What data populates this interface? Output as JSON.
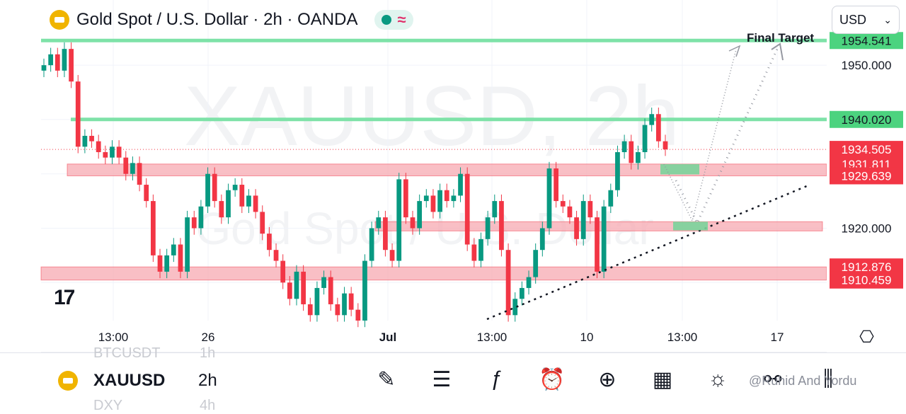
{
  "header": {
    "title": "Gold Spot / U.S. Dollar · 2h · OANDA",
    "status_icon": "approx-icon",
    "status_symbol": "≈"
  },
  "currency_select": {
    "value": "USD"
  },
  "watermark": {
    "main": "XAUUSD, 2h",
    "sub": "Gold Spot / U.S. Dollar"
  },
  "colors": {
    "up": "#089981",
    "down": "#f23645",
    "level": "#7ee2a8",
    "zone": "#f7a9b1",
    "target": "#7ee2a8"
  },
  "chart_data": {
    "type": "candlestick",
    "symbol": "XAUUSD",
    "interval": "2h",
    "ylim": [
      1903,
      1962
    ],
    "x_ticks": [
      "13:00",
      "26",
      "Jul",
      "13:00",
      "10",
      "13:00",
      "17"
    ],
    "price_labels": [
      {
        "value": 1954.541,
        "text": "1954.541",
        "bg": "#4cd37f",
        "fg": "#131722"
      },
      {
        "value": 1950.0,
        "text": "1950.000",
        "bg": "none",
        "fg": "#131722"
      },
      {
        "value": 1940.02,
        "text": "1940.020",
        "bg": "#4cd37f",
        "fg": "#131722"
      },
      {
        "value": 1934.505,
        "text": "1934.505",
        "bg": "#f23645",
        "fg": "#ffffff"
      },
      {
        "value": 1931.811,
        "text": "1931.811",
        "bg": "#f23645",
        "fg": "#ffffff"
      },
      {
        "value": 1929.639,
        "text": "1929.639",
        "bg": "#f23645",
        "fg": "#ffffff"
      },
      {
        "value": 1920.0,
        "text": "1920.000",
        "bg": "none",
        "fg": "#131722"
      },
      {
        "value": 1912.876,
        "text": "1912.876",
        "bg": "#f23645",
        "fg": "#ffffff"
      },
      {
        "value": 1910.459,
        "text": "1910.459",
        "bg": "#f23645",
        "fg": "#ffffff"
      }
    ],
    "horizontal_levels": [
      1954.541,
      1940.02
    ],
    "zones": [
      {
        "from": 1929.639,
        "to": 1931.811
      },
      {
        "from": 1919.5,
        "to": 1921.2
      },
      {
        "from": 1910.459,
        "to": 1912.876
      }
    ],
    "annotation": "Final Target",
    "last_price": 1934.505,
    "closes": [
      1950,
      1952,
      1949,
      1953,
      1947,
      1935,
      1937,
      1936,
      1934,
      1933,
      1935,
      1933,
      1930,
      1932,
      1928,
      1925,
      1915,
      1912,
      1915,
      1917,
      1912,
      1922,
      1920,
      1924,
      1930,
      1925,
      1922,
      1927,
      1928,
      1924,
      1926,
      1923,
      1919,
      1916,
      1914,
      1910,
      1907,
      1912,
      1906,
      1904,
      1909,
      1911,
      1906,
      1904,
      1908,
      1905,
      1903,
      1914,
      1920,
      1922,
      1916,
      1914,
      1929,
      1922,
      1920,
      1925,
      1926,
      1923,
      1927,
      1925,
      1926,
      1930,
      1917,
      1914,
      1918,
      1922,
      1925,
      1916,
      1904,
      1907,
      1909,
      1911,
      1916,
      1920,
      1931,
      1925,
      1924,
      1922,
      1918,
      1925,
      1922,
      1912,
      1924,
      1927,
      1934,
      1936,
      1932,
      1934,
      1939,
      1941,
      1936,
      1934.505
    ]
  },
  "bottom_bar": {
    "symbol": "XAUUSD",
    "interval": "2h",
    "ghost_prev_symbol": "BTCUSDT",
    "ghost_prev_interval": "1h",
    "ghost_next_symbol": "DXY",
    "ghost_next_interval": "4h",
    "credit": "@Ruhid And Yordu",
    "tools": [
      "pen-icon",
      "notes-icon",
      "function-icon",
      "alarm-icon",
      "plus-circle-icon",
      "grid-icon",
      "bulb-icon",
      "connect-icon",
      "candles-icon"
    ]
  }
}
